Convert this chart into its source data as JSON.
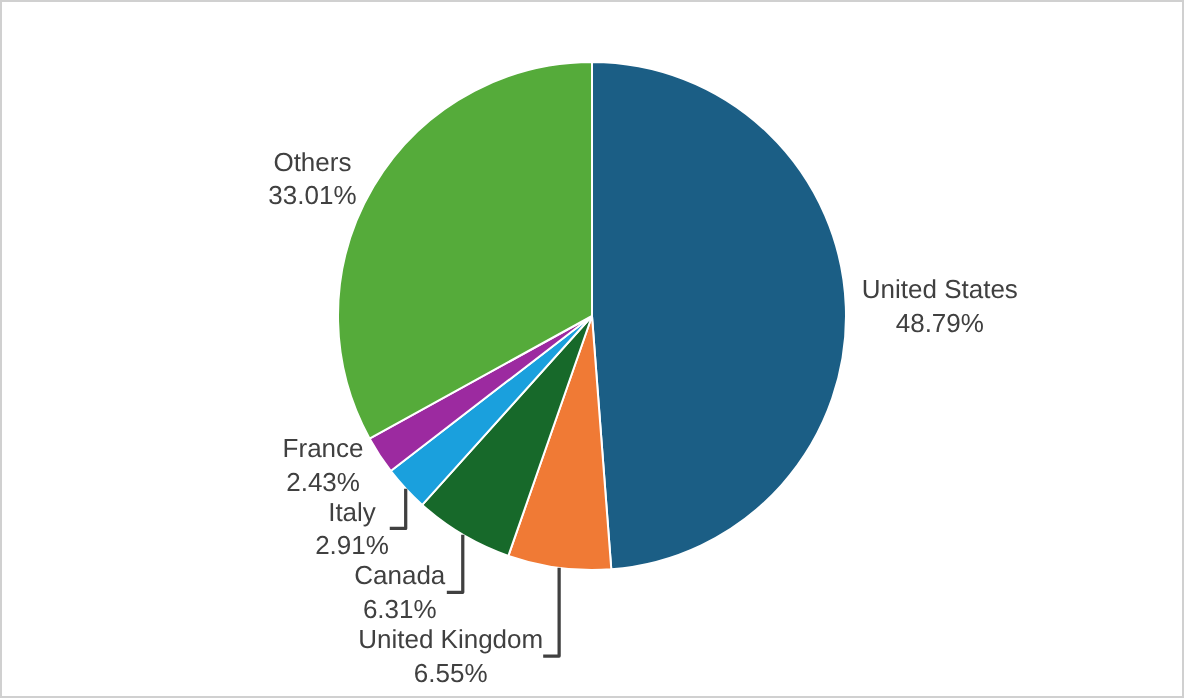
{
  "chart_data": {
    "type": "pie",
    "categories": [
      "United States",
      "United Kingdom",
      "Canada",
      "Italy",
      "France",
      "Others"
    ],
    "values": [
      48.79,
      6.55,
      6.31,
      2.91,
      2.43,
      33.01
    ],
    "value_labels": [
      "48.79%",
      "6.55%",
      "6.31%",
      "2.91%",
      "2.43%",
      "33.01%"
    ],
    "colors": [
      "#1b5e85",
      "#f07a35",
      "#17692a",
      "#1aa0dd",
      "#9c2aa0",
      "#55ab3a"
    ],
    "legend": false
  }
}
